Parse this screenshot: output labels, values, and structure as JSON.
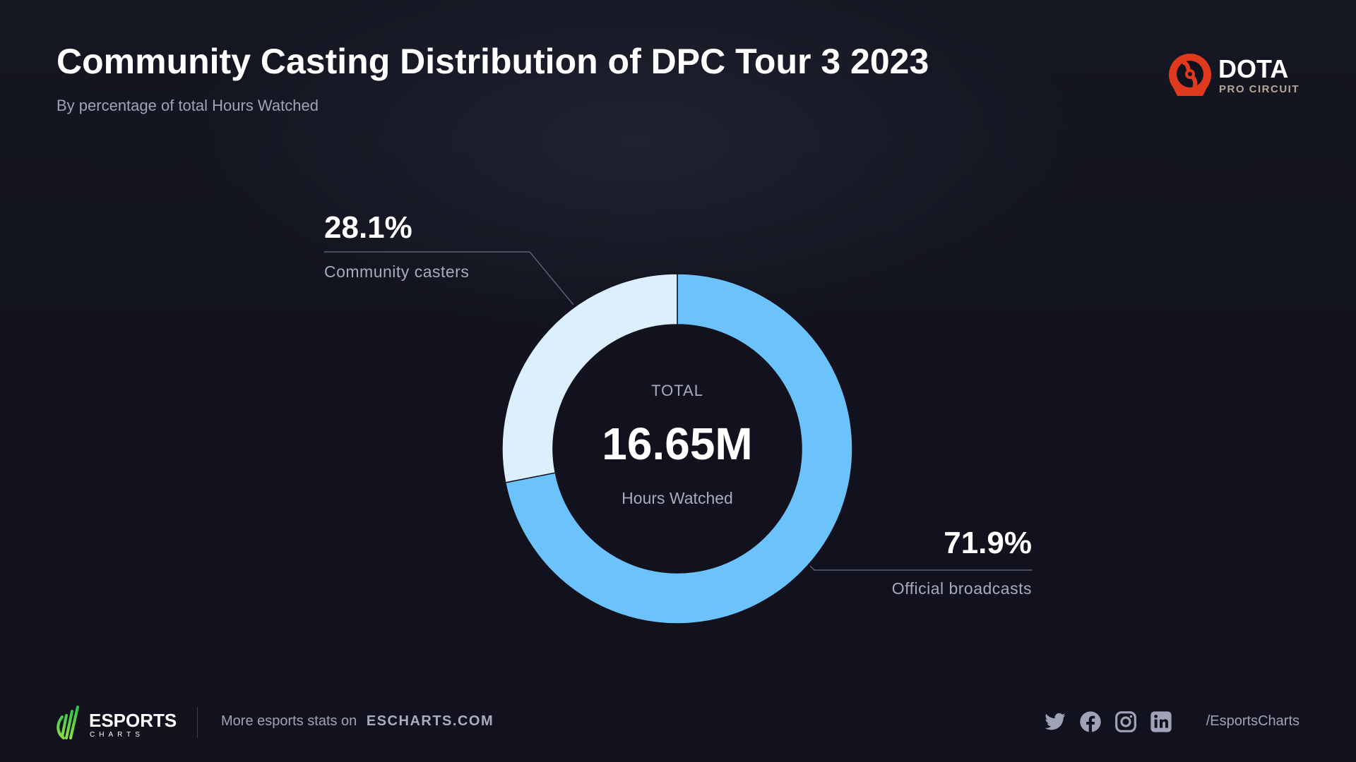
{
  "title": "Community Casting Distribution of DPC Tour 3 2023",
  "subtitle": "By percentage of total Hours Watched",
  "brand_logo": {
    "main": "DOTA",
    "sub": "PRO CIRCUIT",
    "color": "#e03a1e"
  },
  "chart_data": {
    "type": "pie",
    "donut": true,
    "title": "Community Casting Distribution of DPC Tour 3 2023",
    "subtitle": "By percentage of total Hours Watched",
    "center": {
      "label_top": "TOTAL",
      "value": "16.65M",
      "label_bottom": "Hours Watched"
    },
    "slices": [
      {
        "name": "Official broadcasts",
        "value": 71.9,
        "label": "71.9%",
        "color": "#6cc3fc"
      },
      {
        "name": "Community casters",
        "value": 28.1,
        "label": "28.1%",
        "color": "#dbeffe"
      }
    ]
  },
  "footer": {
    "brand_main": "ESPORTS",
    "brand_sub": "CHARTS",
    "more_text": "More esports stats on",
    "site": "ESCHARTS.COM",
    "social_icons": [
      "twitter-icon",
      "facebook-icon",
      "instagram-icon",
      "linkedin-icon"
    ],
    "handle": "/EsportsCharts"
  }
}
